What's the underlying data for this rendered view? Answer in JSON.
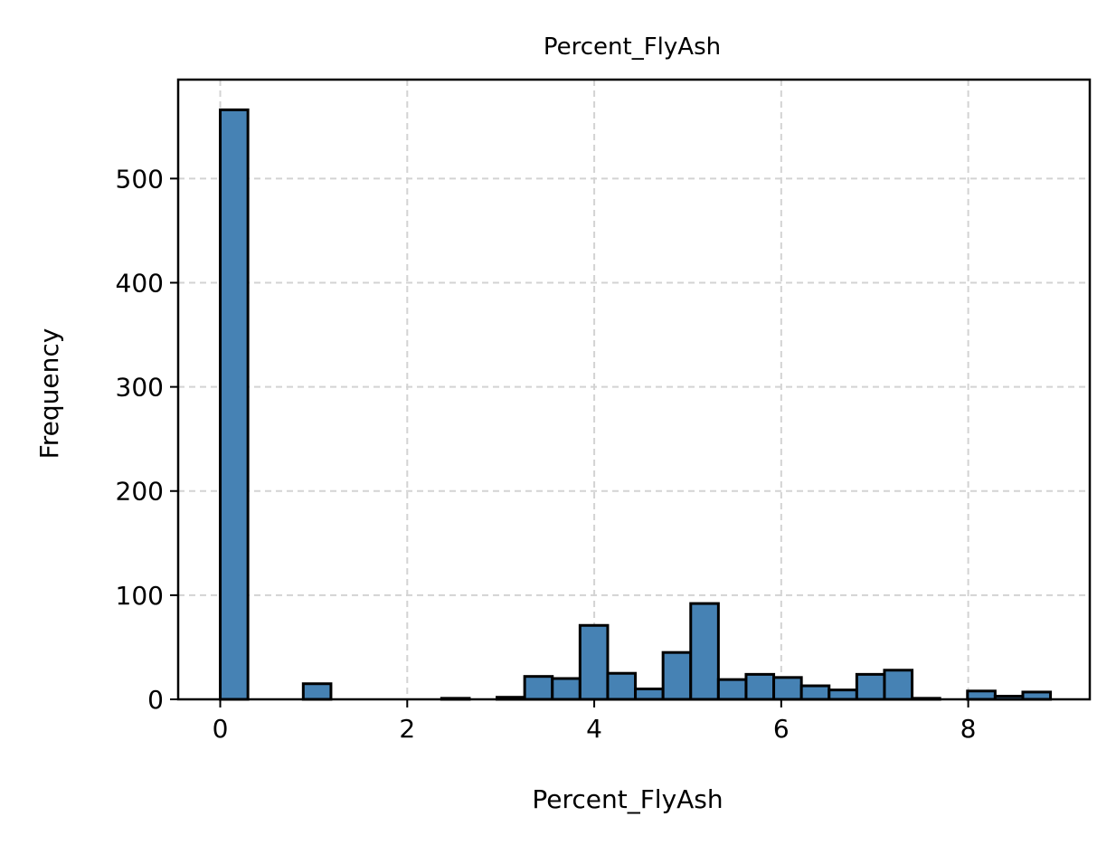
{
  "chart_data": {
    "type": "bar",
    "title": "Percent_FlyAsh",
    "xlabel": "Percent_FlyAsh",
    "ylabel": "Frequency",
    "xlim": [
      -0.45,
      9.3
    ],
    "ylim": [
      0,
      595
    ],
    "xticks": [
      0,
      2,
      4,
      6,
      8
    ],
    "yticks": [
      0,
      100,
      200,
      300,
      400,
      500
    ],
    "grid": true,
    "legend": "none",
    "bar_color": "#4682b4",
    "edge_color": "#000000",
    "bins": [
      {
        "start": 0.0,
        "end": 0.296,
        "value": 566
      },
      {
        "start": 0.296,
        "end": 0.592,
        "value": 0
      },
      {
        "start": 0.592,
        "end": 0.888,
        "value": 0
      },
      {
        "start": 0.888,
        "end": 1.184,
        "value": 15
      },
      {
        "start": 1.184,
        "end": 1.48,
        "value": 0
      },
      {
        "start": 1.48,
        "end": 1.776,
        "value": 0
      },
      {
        "start": 1.776,
        "end": 2.072,
        "value": 0
      },
      {
        "start": 2.072,
        "end": 2.368,
        "value": 0
      },
      {
        "start": 2.368,
        "end": 2.664,
        "value": 1
      },
      {
        "start": 2.664,
        "end": 2.96,
        "value": 0
      },
      {
        "start": 2.96,
        "end": 3.256,
        "value": 2
      },
      {
        "start": 3.256,
        "end": 3.552,
        "value": 22
      },
      {
        "start": 3.552,
        "end": 3.848,
        "value": 20
      },
      {
        "start": 3.848,
        "end": 4.144,
        "value": 71
      },
      {
        "start": 4.144,
        "end": 4.44,
        "value": 25
      },
      {
        "start": 4.44,
        "end": 4.736,
        "value": 10
      },
      {
        "start": 4.736,
        "end": 5.032,
        "value": 45
      },
      {
        "start": 5.032,
        "end": 5.328,
        "value": 92
      },
      {
        "start": 5.328,
        "end": 5.624,
        "value": 19
      },
      {
        "start": 5.624,
        "end": 5.92,
        "value": 24
      },
      {
        "start": 5.92,
        "end": 6.216,
        "value": 21
      },
      {
        "start": 6.216,
        "end": 6.512,
        "value": 13
      },
      {
        "start": 6.512,
        "end": 6.808,
        "value": 9
      },
      {
        "start": 6.808,
        "end": 7.104,
        "value": 24
      },
      {
        "start": 7.104,
        "end": 7.4,
        "value": 28
      },
      {
        "start": 7.4,
        "end": 7.696,
        "value": 1
      },
      {
        "start": 7.696,
        "end": 7.992,
        "value": 0
      },
      {
        "start": 7.992,
        "end": 8.288,
        "value": 8
      },
      {
        "start": 8.288,
        "end": 8.584,
        "value": 3
      },
      {
        "start": 8.584,
        "end": 8.88,
        "value": 7
      }
    ]
  }
}
